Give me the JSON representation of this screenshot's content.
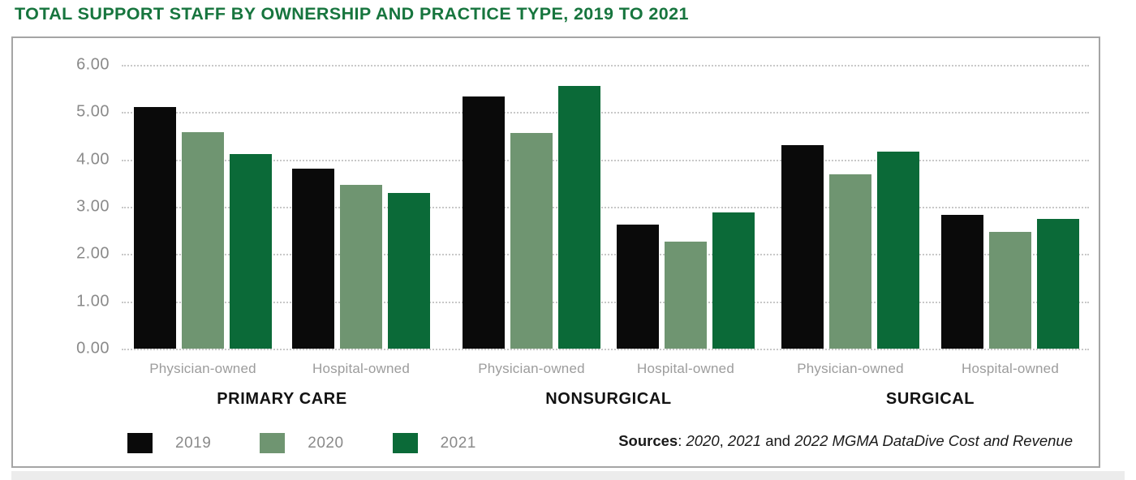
{
  "page": {
    "title": "TOTAL SUPPORT STAFF BY OWNERSHIP AND PRACTICE TYPE, 2019 TO 2021"
  },
  "chart_data": {
    "type": "bar",
    "title": "TOTAL SUPPORT STAFF BY OWNERSHIP AND PRACTICE TYPE, 2019 TO 2021",
    "xlabel": "",
    "ylabel": "",
    "ylim": [
      0,
      6
    ],
    "y_ticks": [
      "6.00",
      "5.00",
      "4.00",
      "3.00",
      "2.00",
      "1.00",
      "0.00"
    ],
    "grid": "horizontal-dotted",
    "legend_position": "bottom-left",
    "series_names": [
      "2019",
      "2020",
      "2021"
    ],
    "series_colors": [
      "#0a0a0a",
      "#6f9571",
      "#0b6a38"
    ],
    "sections": [
      {
        "label": "PRIMARY CARE",
        "groups": [
          {
            "label": "Physician-owned",
            "values": [
              5.1,
              4.58,
              4.11
            ]
          },
          {
            "label": "Hospital-owned",
            "values": [
              3.8,
              3.47,
              3.3
            ]
          }
        ]
      },
      {
        "label": "NONSURGICAL",
        "groups": [
          {
            "label": "Physician-owned",
            "values": [
              5.33,
              4.56,
              5.56
            ]
          },
          {
            "label": "Hospital-owned",
            "values": [
              2.62,
              2.27,
              2.88
            ]
          }
        ]
      },
      {
        "label": "SURGICAL",
        "groups": [
          {
            "label": "Physician-owned",
            "values": [
              4.31,
              3.68,
              4.17
            ]
          },
          {
            "label": "Hospital-owned",
            "values": [
              2.83,
              2.47,
              2.74
            ]
          }
        ]
      }
    ]
  },
  "legend": {
    "items": [
      {
        "label": "2019",
        "color": "#0a0a0a"
      },
      {
        "label": "2020",
        "color": "#6f9571"
      },
      {
        "label": "2021",
        "color": "#0b6a38"
      }
    ]
  },
  "sources": {
    "segments": [
      {
        "text": "Sources",
        "style": "bold"
      },
      {
        "text": ": ",
        "style": "normal"
      },
      {
        "text": "2020",
        "style": "italic"
      },
      {
        "text": ", ",
        "style": "normal"
      },
      {
        "text": "2021",
        "style": "italic"
      },
      {
        "text": " and ",
        "style": "normal"
      },
      {
        "text": "2022 MGMA DataDive Cost and Revenue",
        "style": "italic"
      }
    ]
  },
  "colors": {
    "title": "#17753e",
    "grid": "#c8c8c8",
    "tick_label": "#8a8a8a",
    "group_sublabel": "#9c9c9c",
    "section_label": "#121212",
    "legend_label": "#8a8a8a",
    "panel_border": "#a5a5a5",
    "bottom_strip": "#ececec"
  }
}
